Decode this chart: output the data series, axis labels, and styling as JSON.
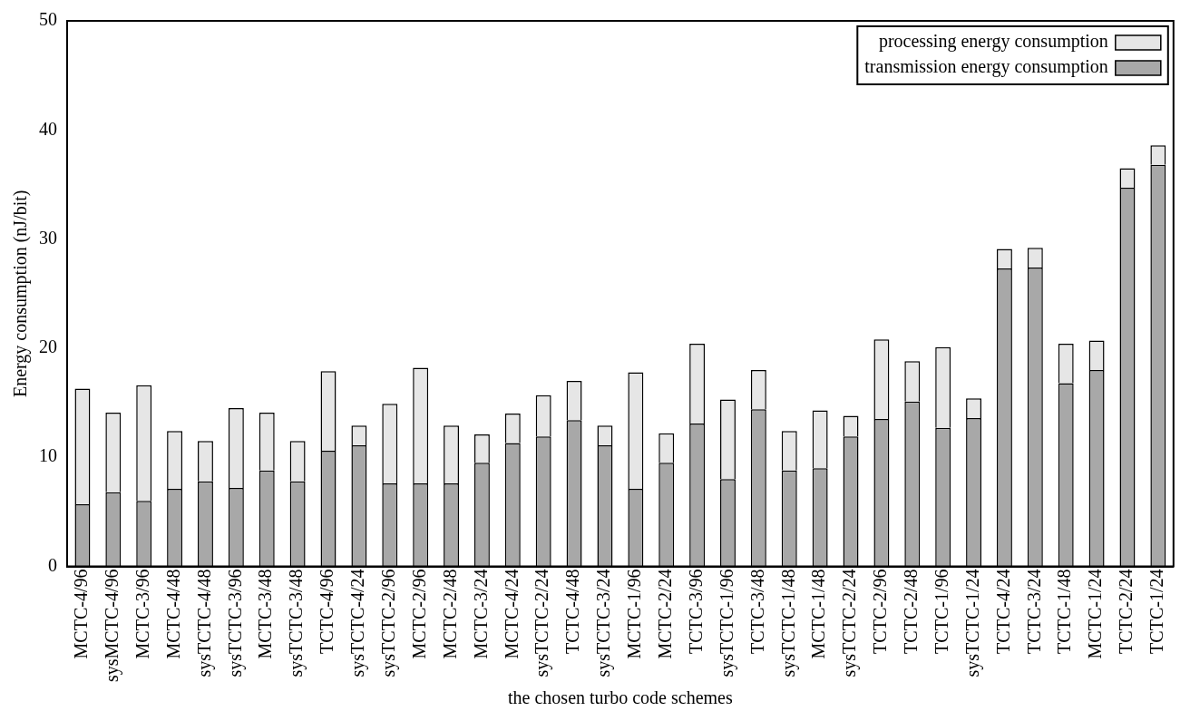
{
  "chart_data": {
    "type": "bar",
    "stacked": true,
    "xlabel": "the chosen turbo code schemes",
    "ylabel": "Energy consumption (nJ/bit)",
    "categories": [
      "MCTC-4/96",
      "sysMCTC-4/96",
      "MCTC-3/96",
      "MCTC-4/48",
      "sysTCTC-4/48",
      "sysTCTC-3/96",
      "MCTC-3/48",
      "sysTCTC-3/48",
      "TCTC-4/96",
      "sysTCTC-4/24",
      "sysTCTC-2/96",
      "MCTC-2/96",
      "MCTC-2/48",
      "MCTC-3/24",
      "MCTC-4/24",
      "sysTCTC-2/24",
      "TCTC-4/48",
      "sysTCTC-3/24",
      "MCTC-1/96",
      "MCTC-2/24",
      "TCTC-3/96",
      "sysTCTC-1/96",
      "TCTC-3/48",
      "sysTCTC-1/48",
      "MCTC-1/48",
      "sysTCTC-2/24",
      "TCTC-2/96",
      "TCTC-2/48",
      "TCTC-1/96",
      "sysTCTC-1/24",
      "TCTC-4/24",
      "TCTC-3/24",
      "TCTC-1/48",
      "MCTC-1/24",
      "TCTC-2/24",
      "TCTC-1/24"
    ],
    "series": [
      {
        "name": "transmission energy consumption",
        "color": "#a8a8a8",
        "values": [
          5.7,
          6.8,
          6.0,
          7.1,
          7.8,
          7.2,
          8.8,
          7.8,
          10.6,
          11.1,
          7.6,
          7.6,
          7.6,
          9.5,
          11.3,
          11.9,
          13.4,
          11.1,
          7.1,
          9.5,
          13.1,
          8.0,
          14.4,
          8.8,
          9.0,
          11.9,
          13.5,
          15.1,
          12.7,
          13.6,
          27.3,
          27.4,
          16.8,
          18.0,
          34.7,
          36.8
        ]
      },
      {
        "name": "processing energy consumption",
        "color": "#e6e6e6",
        "values": [
          10.6,
          7.3,
          10.6,
          5.3,
          3.7,
          7.3,
          5.3,
          3.7,
          7.3,
          1.8,
          7.3,
          10.6,
          5.3,
          2.6,
          2.7,
          3.8,
          3.6,
          1.8,
          10.7,
          2.7,
          7.3,
          7.3,
          3.6,
          3.6,
          5.3,
          1.9,
          7.3,
          3.7,
          7.4,
          1.8,
          1.8,
          1.8,
          3.6,
          2.7,
          1.8,
          1.8
        ]
      }
    ],
    "ylim": [
      0,
      50
    ],
    "yticks": [
      0,
      10,
      20,
      30,
      40,
      50
    ],
    "grid": false,
    "legend": "top right"
  }
}
